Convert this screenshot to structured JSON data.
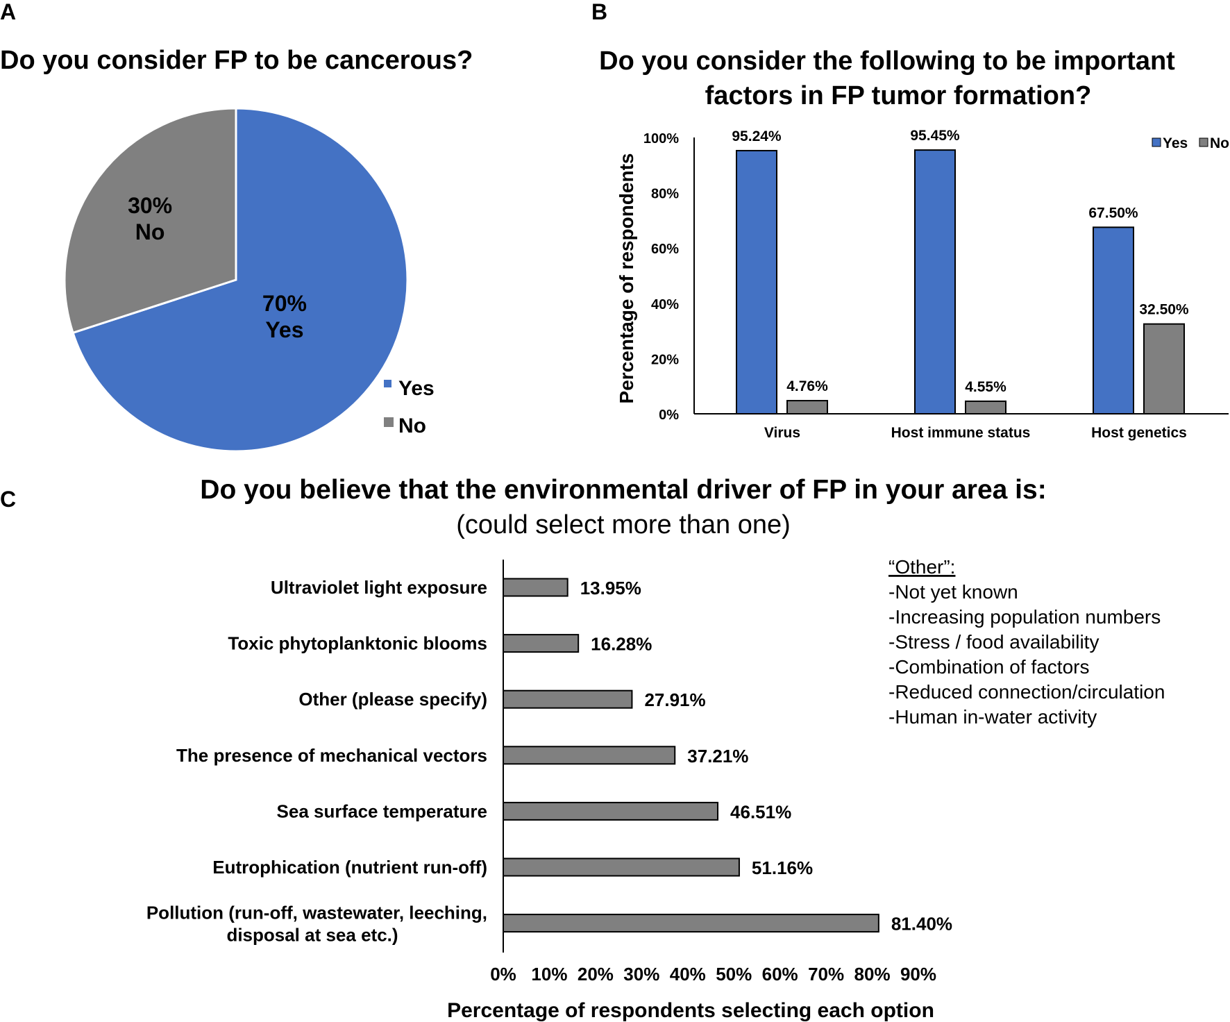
{
  "panels": {
    "a": {
      "letter": "A",
      "legend": [
        {
          "label": "Yes",
          "color": "#4472C4"
        },
        {
          "label": "No",
          "color": "#808080"
        }
      ]
    },
    "b": {
      "letter": "B",
      "legend": [
        {
          "label": "Yes",
          "color": "#4472C4"
        },
        {
          "label": "No",
          "color": "#808080"
        }
      ]
    },
    "c": {
      "letter": "C",
      "other_box": {
        "heading": "“Other”:",
        "lines": [
          "-Not yet known",
          "-Increasing population numbers",
          "-Stress / food availability",
          "-Combination of factors",
          "-Reduced connection/circulation",
          "-Human in-water activity"
        ]
      }
    }
  },
  "chart_data": [
    {
      "type": "pie",
      "title": "Do you consider FP to be cancerous?",
      "slices": [
        {
          "label": "Yes",
          "value": 70,
          "display": "70%",
          "color": "#4472C4"
        },
        {
          "label": "No",
          "value": 30,
          "display": "30%",
          "color": "#808080"
        }
      ],
      "legend_position": "bottom-right"
    },
    {
      "type": "bar",
      "title_lines": [
        "Do you consider the following to be important",
        "factors in FP tumor formation?"
      ],
      "categories": [
        "Virus",
        "Host immune status",
        "Host genetics"
      ],
      "series": [
        {
          "name": "Yes",
          "color": "#4472C4",
          "values": [
            95.24,
            95.45,
            67.5
          ],
          "labels": [
            "95.24%",
            "95.45%",
            "67.50%"
          ]
        },
        {
          "name": "No",
          "color": "#808080",
          "values": [
            4.76,
            4.55,
            32.5
          ],
          "labels": [
            "4.76%",
            "4.55%",
            "32.50%"
          ]
        }
      ],
      "ylabel": "Percentage of respondents",
      "ylim": [
        0,
        100
      ],
      "yticks": [
        "0%",
        "20%",
        "40%",
        "60%",
        "80%",
        "100%"
      ],
      "grid": false,
      "legend_position": "top-right"
    },
    {
      "type": "bar",
      "orientation": "horizontal",
      "title": "Do you believe that the environmental driver of FP in your area is:",
      "subtitle": "(could select more than one)",
      "categories": [
        [
          "Ultraviolet light exposure"
        ],
        [
          "Toxic phytoplanktonic blooms"
        ],
        [
          "Other (please specify)"
        ],
        [
          "The presence of mechanical vectors"
        ],
        [
          "Sea surface temperature"
        ],
        [
          "Eutrophication (nutrient run-off)"
        ],
        [
          "Pollution (run-off, wastewater, leeching,",
          "disposal at sea etc.)"
        ]
      ],
      "values": [
        13.95,
        16.28,
        27.91,
        37.21,
        46.51,
        51.16,
        81.4
      ],
      "labels": [
        "13.95%",
        "16.28%",
        "27.91%",
        "37.21%",
        "46.51%",
        "51.16%",
        "81.40%"
      ],
      "color": "#808080",
      "xlabel": "Percentage of respondents selecting each option",
      "xlim": [
        0,
        90
      ],
      "xticks": [
        "0%",
        "10%",
        "20%",
        "30%",
        "40%",
        "50%",
        "60%",
        "70%",
        "80%",
        "90%"
      ],
      "grid": false
    }
  ]
}
